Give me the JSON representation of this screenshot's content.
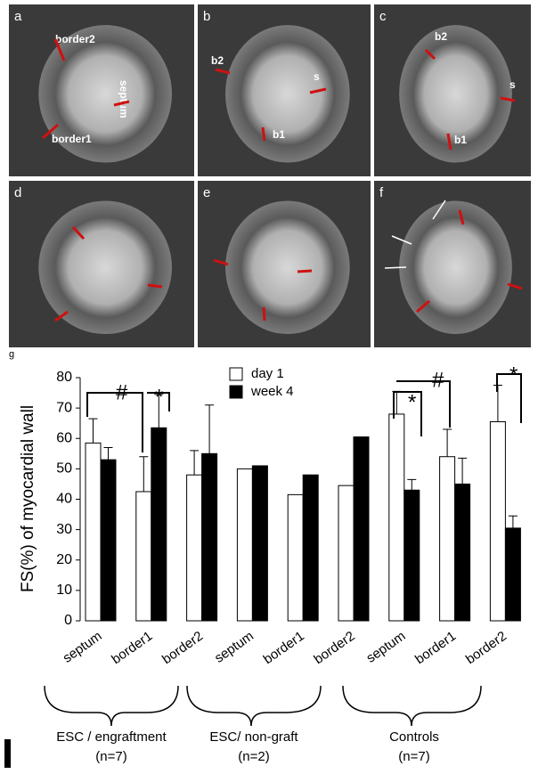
{
  "panels": [
    {
      "label": "a",
      "notes": [
        "border2",
        "septum",
        "border1"
      ]
    },
    {
      "label": "b",
      "notes": [
        "b2",
        "s",
        "b1"
      ]
    },
    {
      "label": "c",
      "notes": [
        "b2",
        "s",
        "b1"
      ]
    },
    {
      "label": "d",
      "notes": []
    },
    {
      "label": "e",
      "notes": []
    },
    {
      "label": "f",
      "notes": []
    }
  ],
  "chart_data": {
    "type": "bar",
    "panel_label": "g",
    "y_label": "FS(%) of myocardial wall",
    "categories": [
      "septum",
      "border1",
      "border2",
      "septum",
      "border1",
      "border2",
      "septum",
      "border1",
      "border2"
    ],
    "groups": [
      {
        "name": "ESC / engraftment",
        "n": "(n=7)"
      },
      {
        "name": "ESC/ non-graft",
        "n": "(n=2)"
      },
      {
        "name": "Controls",
        "n": "(n=7)"
      }
    ],
    "series": [
      {
        "name": "day 1",
        "color": "#ffffff",
        "values": [
          58.5,
          42.5,
          48,
          50,
          41.5,
          44.5,
          68,
          54,
          65.5
        ],
        "errors": [
          8,
          11.5,
          8,
          null,
          null,
          null,
          7.5,
          9,
          12
        ]
      },
      {
        "name": "week 4",
        "color": "#000000",
        "values": [
          53,
          63.5,
          55,
          51,
          48,
          60.5,
          43,
          45,
          30.5
        ],
        "errors": [
          4,
          11,
          16,
          null,
          null,
          null,
          3.5,
          8.5,
          4
        ]
      }
    ],
    "annotations": [
      "#",
      "*",
      "*",
      "#",
      "*"
    ],
    "ylim": [
      0,
      80
    ],
    "yticks": [
      0,
      10,
      20,
      30,
      40,
      50,
      60,
      70,
      80
    ],
    "legend": "top"
  }
}
